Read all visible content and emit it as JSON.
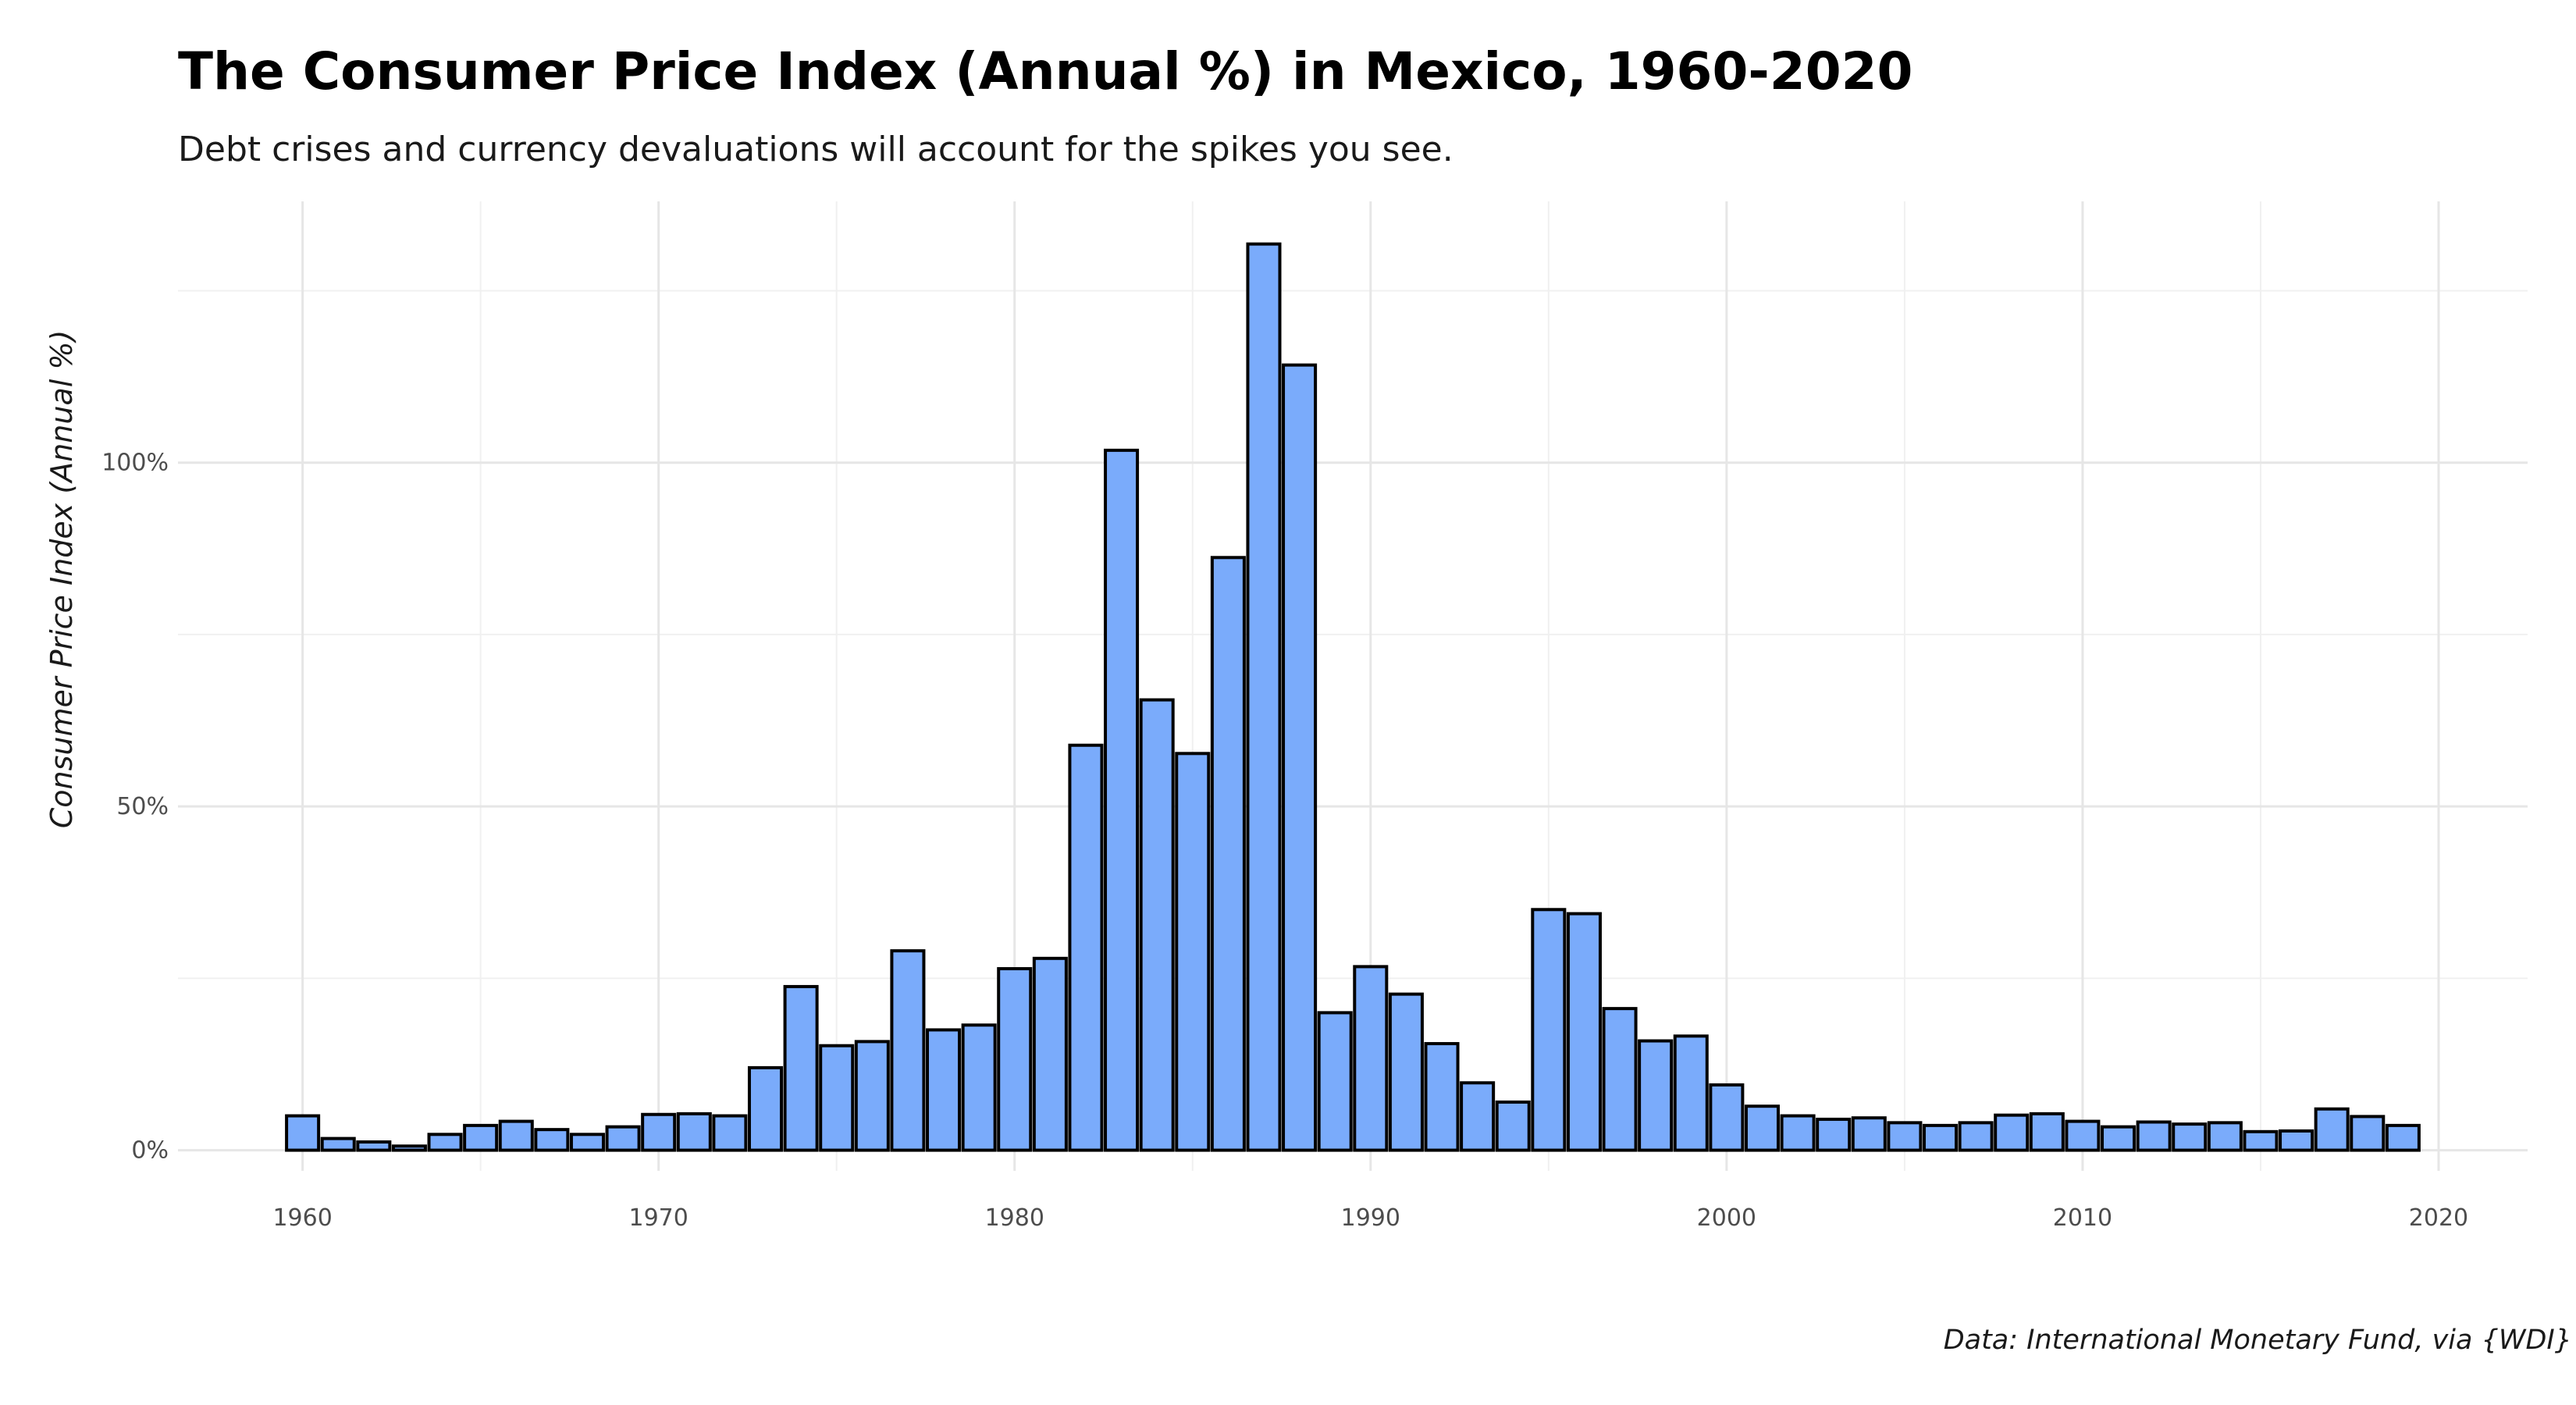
{
  "chart_data": {
    "type": "bar",
    "title": "The Consumer Price Index (Annual %) in Mexico, 1960-2020",
    "subtitle": "Debt crises and currency devaluations will account for the spikes you see.",
    "ylabel": "Consumer Price Index (Annual %)",
    "xlabel": "",
    "caption": "Data: International Monetary Fund, via {WDI}",
    "xlim": [
      1956.5,
      2022.5
    ],
    "ylim": [
      -3,
      138
    ],
    "grid": true,
    "legend": "none",
    "bar_color": "#7aabfb",
    "bar_outline": "#000000",
    "x_ticks": [
      {
        "value": 1960,
        "label": "1960"
      },
      {
        "value": 1970,
        "label": "1970"
      },
      {
        "value": 1980,
        "label": "1980"
      },
      {
        "value": 1990,
        "label": "1990"
      },
      {
        "value": 2000,
        "label": "2000"
      },
      {
        "value": 2010,
        "label": "2010"
      },
      {
        "value": 2020,
        "label": "2020"
      }
    ],
    "y_ticks": [
      {
        "value": 0,
        "label": "0%"
      },
      {
        "value": 50,
        "label": "50%"
      },
      {
        "value": 100,
        "label": "100%"
      }
    ],
    "x": [
      1960,
      1961,
      1962,
      1963,
      1964,
      1965,
      1966,
      1967,
      1968,
      1969,
      1970,
      1971,
      1972,
      1973,
      1974,
      1975,
      1976,
      1977,
      1978,
      1979,
      1980,
      1981,
      1982,
      1983,
      1984,
      1985,
      1986,
      1987,
      1988,
      1989,
      1990,
      1991,
      1992,
      1993,
      1994,
      1995,
      1996,
      1997,
      1998,
      1999,
      2000,
      2001,
      2002,
      2003,
      2004,
      2005,
      2006,
      2007,
      2008,
      2009,
      2010,
      2011,
      2012,
      2013,
      2014,
      2015,
      2016,
      2017,
      2018,
      2019
    ],
    "values": [
      5.0,
      1.7,
      1.2,
      0.6,
      2.3,
      3.6,
      4.2,
      3.0,
      2.3,
      3.4,
      5.2,
      5.3,
      5.0,
      12.0,
      23.8,
      15.2,
      15.8,
      29.0,
      17.5,
      18.2,
      26.4,
      27.9,
      58.9,
      101.8,
      65.5,
      57.7,
      86.2,
      131.8,
      114.2,
      20.0,
      26.7,
      22.7,
      15.5,
      9.8,
      7.0,
      35.0,
      34.4,
      20.6,
      15.9,
      16.6,
      9.5,
      6.4,
      5.0,
      4.5,
      4.7,
      4.0,
      3.6,
      4.0,
      5.1,
      5.3,
      4.2,
      3.4,
      4.1,
      3.8,
      4.0,
      2.7,
      2.8,
      6.0,
      4.9,
      3.6
    ]
  }
}
